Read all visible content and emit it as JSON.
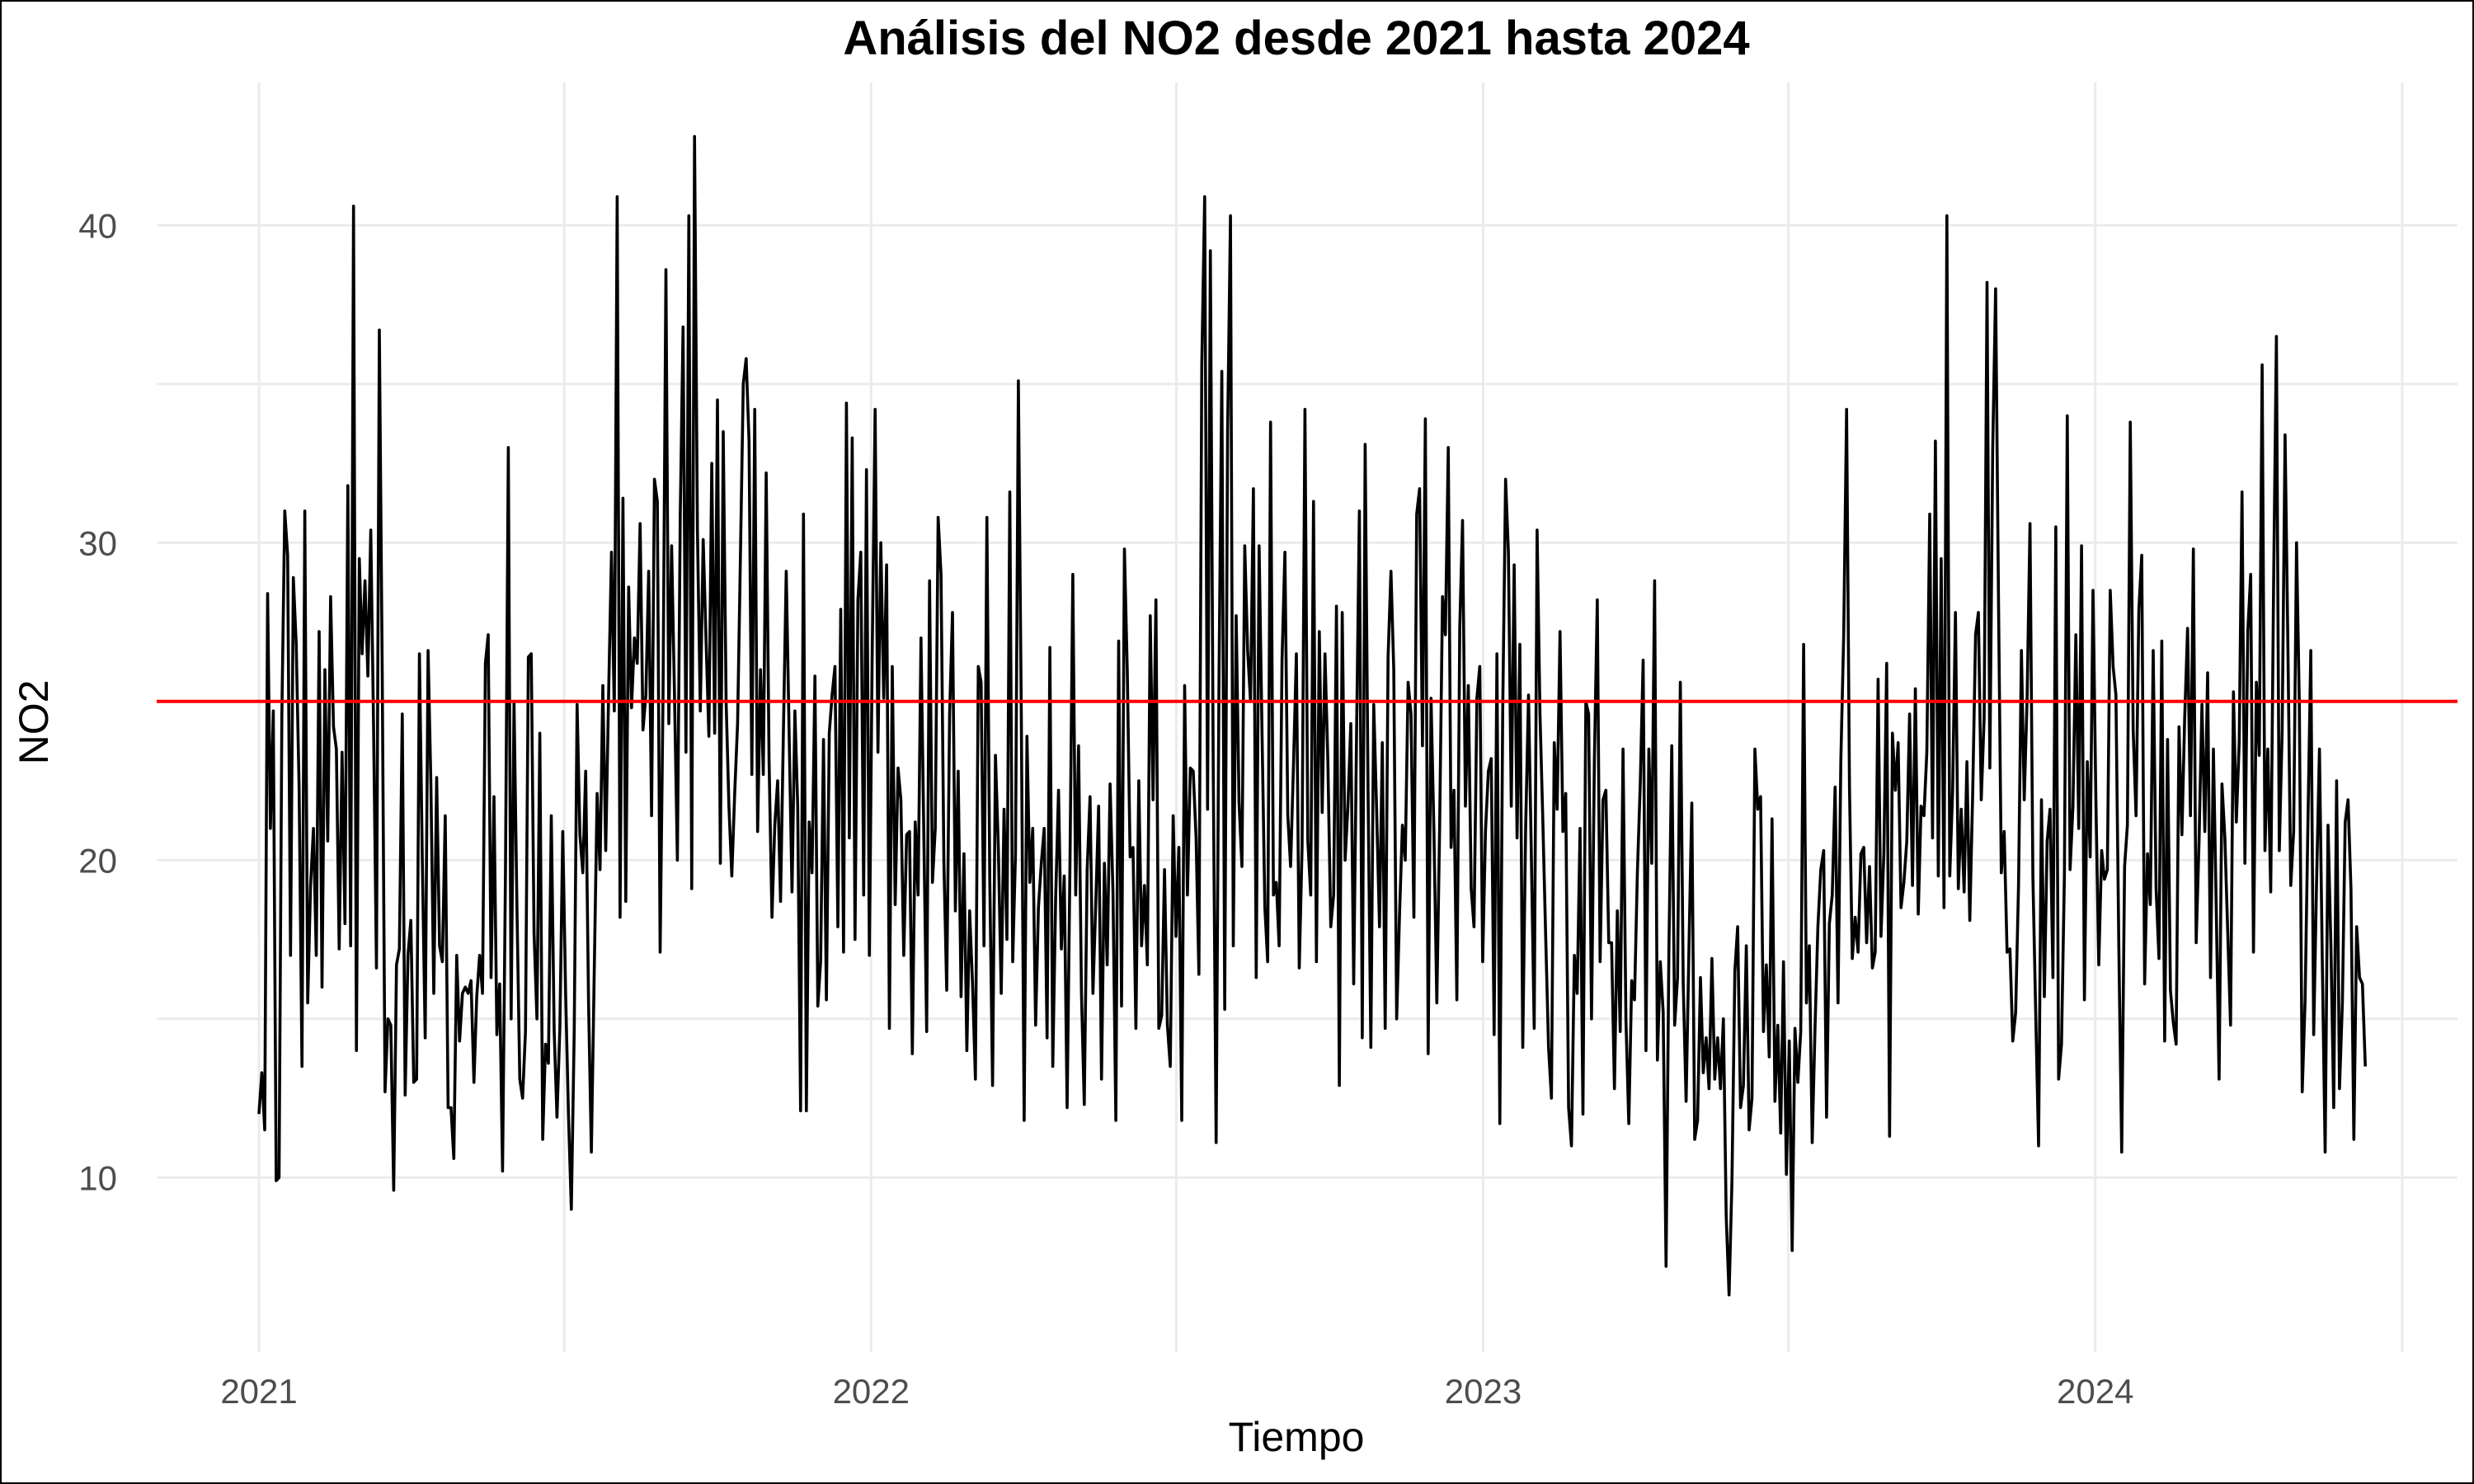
{
  "chart_data": {
    "type": "line",
    "title": "Análisis del NO2 desde 2021 hasta 2024",
    "xlabel": "Tiempo",
    "ylabel": "NO2",
    "x_ticks": [
      "2021",
      "2022",
      "2023",
      "2024"
    ],
    "y_ticks": [
      10,
      20,
      30,
      40
    ],
    "ylim": [
      4.5,
      44.5
    ],
    "xlim": [
      "2020-11-01",
      "2024-08-04"
    ],
    "grid": true,
    "series": [
      {
        "color": "#000000",
        "x_start": "2021-01-01",
        "x_end": "2024-06-10",
        "values": [
          12.0,
          13.3,
          11.5,
          28.4,
          21.0,
          24.7,
          9.9,
          10.0,
          24.6,
          31.0,
          29.6,
          17.0,
          28.9,
          26.8,
          22.3,
          13.5,
          31.0,
          15.5,
          19.2,
          21.0,
          17.0,
          27.2,
          16.0,
          26.0,
          20.6,
          28.3,
          24.2,
          23.5,
          17.2,
          23.4,
          18.0,
          31.8,
          17.3,
          40.6,
          14.0,
          29.5,
          26.5,
          28.8,
          25.8,
          30.4,
          24.2,
          16.6,
          36.7,
          25.9,
          12.7,
          15.0,
          14.8,
          9.6,
          16.7,
          17.2,
          24.6,
          12.6,
          17.0,
          18.1,
          13.0,
          13.1,
          26.5,
          20.0,
          14.4,
          26.6,
          22.4,
          15.8,
          22.6,
          17.3,
          16.8,
          21.4,
          12.2,
          12.2,
          10.6,
          17.0,
          14.3,
          15.8,
          16.0,
          15.8,
          16.2,
          13.0,
          15.7,
          17.0,
          15.8,
          26.2,
          27.1,
          16.3,
          22.0,
          14.5,
          16.1,
          10.2,
          19.5,
          33.0,
          15.0,
          25.0,
          18.6,
          13.1,
          12.5,
          14.6,
          26.4,
          26.5,
          17.7,
          15.0,
          24.0,
          11.2,
          14.2,
          13.6,
          21.4,
          14.6,
          11.9,
          14.7,
          20.9,
          15.8,
          12.0,
          9.0,
          14.6,
          24.9,
          20.8,
          19.6,
          22.8,
          15.5,
          10.8,
          16.5,
          22.1,
          19.7,
          25.5,
          20.3,
          25.2,
          29.7,
          24.7,
          40.9,
          18.2,
          31.4,
          18.7,
          28.6,
          24.8,
          27.0,
          26.2,
          30.6,
          24.1,
          25.2,
          29.1,
          21.4,
          32.0,
          31.3,
          17.1,
          25.2,
          38.6,
          24.3,
          29.9,
          25.2,
          20.0,
          30.9,
          36.8,
          23.4,
          40.3,
          19.1,
          42.8,
          30.4,
          24.7,
          30.1,
          27.0,
          23.9,
          32.5,
          24.0,
          34.5,
          19.9,
          33.5,
          25.0,
          21.7,
          19.5,
          22.1,
          24.3,
          29.5,
          35.0,
          35.8,
          33.2,
          22.7,
          34.2,
          20.9,
          26.0,
          22.7,
          32.2,
          23.1,
          18.2,
          21.1,
          22.5,
          18.7,
          24.1,
          29.1,
          24.0,
          19.0,
          24.7,
          21.7,
          12.1,
          30.9,
          12.1,
          21.2,
          19.6,
          25.8,
          15.4,
          16.8,
          23.8,
          15.6,
          24.0,
          25.2,
          26.1,
          17.9,
          27.9,
          17.1,
          34.4,
          20.7,
          33.3,
          17.5,
          28.2,
          29.7,
          18.9,
          32.3,
          17.0,
          26.6,
          34.2,
          23.4,
          30.0,
          25.1,
          29.3,
          14.7,
          26.1,
          18.6,
          22.9,
          21.9,
          17.0,
          20.8,
          20.9,
          13.9,
          21.2,
          18.9,
          27.0,
          20.9,
          14.6,
          28.8,
          19.3,
          21.0,
          30.8,
          29.0,
          19.9,
          15.9,
          24.6,
          27.8,
          18.4,
          22.8,
          15.7,
          20.2,
          14.0,
          18.4,
          16.1,
          13.1,
          26.1,
          25.6,
          17.3,
          30.8,
          19.4,
          12.9,
          23.3,
          20.4,
          15.8,
          21.6,
          17.5,
          31.6,
          16.8,
          20.2,
          35.1,
          24.7,
          11.8,
          23.9,
          19.3,
          21.0,
          14.8,
          18.5,
          19.9,
          21.0,
          14.4,
          26.7,
          13.5,
          18.8,
          22.2,
          17.2,
          19.5,
          12.2,
          20.0,
          29.0,
          18.9,
          23.6,
          15.8,
          12.3,
          19.7,
          22.0,
          15.8,
          18.6,
          21.7,
          13.1,
          19.9,
          16.7,
          22.4,
          19.0,
          11.8,
          26.9,
          15.4,
          29.8,
          25.9,
          20.1,
          20.4,
          14.7,
          22.5,
          17.3,
          19.2,
          16.7,
          27.7,
          21.9,
          28.2,
          14.7,
          15.1,
          19.7,
          14.8,
          13.5,
          21.4,
          17.6,
          20.4,
          11.8,
          25.5,
          18.9,
          22.9,
          22.8,
          20.7,
          16.4,
          35.6,
          40.9,
          21.6,
          39.2,
          22.8,
          11.1,
          25.8,
          35.4,
          15.3,
          33.5,
          40.3,
          17.3,
          27.7,
          21.8,
          19.8,
          29.9,
          26.6,
          25.0,
          31.7,
          16.3,
          29.9,
          24.1,
          18.5,
          16.8,
          33.8,
          18.9,
          19.3,
          17.3,
          26.3,
          29.7,
          21.4,
          19.8,
          23.0,
          26.5,
          16.6,
          20.4,
          34.2,
          20.6,
          18.9,
          31.3,
          16.8,
          27.2,
          21.5,
          26.5,
          23.1,
          17.9,
          18.9,
          28.0,
          12.9,
          27.8,
          20.0,
          21.7,
          24.3,
          16.1,
          24.0,
          31.0,
          14.4,
          33.1,
          22.2,
          14.1,
          24.9,
          21.6,
          17.9,
          23.7,
          14.7,
          26.4,
          29.1,
          26.0,
          15.0,
          18.3,
          21.1,
          20.0,
          25.6,
          24.6,
          18.2,
          30.9,
          31.7,
          23.6,
          33.9,
          13.9,
          25.1,
          20.9,
          15.5,
          21.0,
          28.3,
          27.1,
          33.0,
          20.4,
          22.2,
          15.6,
          27.3,
          30.7,
          21.7,
          25.5,
          19.1,
          17.9,
          25.1,
          26.1,
          16.8,
          20.9,
          22.8,
          23.2,
          14.5,
          26.5,
          11.7,
          24.7,
          32.0,
          29.7,
          21.7,
          29.3,
          20.7,
          26.8,
          14.1,
          21.0,
          25.2,
          20.2,
          14.7,
          30.4,
          24.6,
          21.3,
          17.6,
          14.1,
          12.5,
          23.7,
          21.6,
          27.2,
          20.9,
          22.1,
          12.2,
          11.0,
          17.0,
          15.8,
          21.0,
          12.0,
          25.0,
          24.6,
          15.0,
          23.2,
          28.2,
          16.8,
          21.9,
          22.2,
          17.4,
          17.4,
          12.8,
          18.4,
          14.6,
          23.5,
          15.0,
          11.7,
          16.2,
          15.6,
          19.6,
          22.4,
          26.3,
          14.0,
          23.5,
          19.9,
          28.8,
          13.7,
          16.8,
          15.2,
          7.2,
          17.1,
          23.6,
          14.8,
          16.3,
          25.6,
          16.1,
          12.4,
          17.3,
          21.8,
          11.2,
          11.8,
          16.3,
          13.3,
          14.4,
          12.8,
          16.9,
          13.1,
          14.4,
          12.8,
          15.0,
          8.8,
          6.3,
          9.9,
          16.5,
          17.9,
          12.2,
          12.9,
          17.3,
          11.5,
          12.5,
          23.5,
          21.6,
          22.0,
          14.6,
          16.7,
          13.8,
          21.3,
          12.4,
          14.8,
          11.4,
          16.8,
          10.1,
          14.3,
          7.7,
          14.7,
          13.0,
          14.6,
          26.8,
          15.5,
          17.3,
          11.1,
          14.8,
          17.9,
          19.7,
          20.3,
          11.9,
          18.0,
          18.9,
          22.3,
          15.5,
          23.1,
          27.1,
          34.2,
          22.3,
          16.9,
          18.2,
          17.1,
          20.2,
          20.4,
          17.4,
          19.8,
          16.6,
          17.1,
          25.7,
          17.6,
          20.2,
          26.2,
          11.3,
          24.0,
          22.2,
          23.7,
          18.5,
          19.3,
          20.6,
          24.6,
          19.2,
          25.4,
          18.3,
          21.7,
          21.4,
          23.4,
          30.9,
          20.7,
          33.2,
          19.5,
          29.5,
          18.5,
          40.3,
          19.5,
          22.2,
          27.8,
          19.1,
          21.6,
          19.0,
          23.1,
          18.1,
          22.1,
          27.1,
          27.8,
          21.9,
          24.5,
          38.2,
          22.9,
          33.0,
          38.0,
          28.2,
          19.6,
          20.9,
          17.1,
          17.2,
          14.3,
          15.2,
          19.2,
          26.6,
          21.9,
          25.1,
          30.6,
          19.5,
          15.2,
          11.0,
          21.9,
          15.7,
          20.6,
          21.6,
          16.3,
          30.5,
          13.1,
          14.2,
          19.5,
          34.0,
          19.7,
          21.7,
          27.1,
          21.0,
          29.9,
          15.6,
          23.1,
          20.1,
          28.5,
          21.9,
          16.7,
          20.3,
          19.4,
          19.7,
          28.5,
          26.1,
          25.2,
          17.3,
          10.8,
          19.8,
          21.1,
          33.8,
          24.1,
          21.4,
          27.9,
          29.6,
          16.1,
          20.2,
          18.6,
          26.6,
          19.1,
          16.9,
          26.9,
          14.3,
          23.8,
          15.9,
          14.9,
          14.2,
          24.2,
          20.8,
          24.5,
          27.3,
          21.4,
          29.8,
          17.4,
          20.6,
          24.9,
          20.9,
          25.9,
          16.3,
          23.5,
          18.4,
          13.1,
          22.4,
          20.7,
          17.7,
          14.8,
          25.3,
          21.2,
          23.7,
          31.6,
          19.9,
          27.2,
          29.0,
          17.1,
          25.6,
          23.3,
          35.6,
          20.3,
          23.5,
          19.0,
          28.7,
          36.5,
          20.3,
          24.1,
          33.4,
          26.8,
          19.2,
          20.9,
          30.0,
          24.9,
          12.7,
          15.6,
          21.3,
          26.6,
          14.5,
          19.3,
          23.5,
          16.9,
          10.8,
          21.1,
          17.3,
          12.2,
          22.5,
          12.8,
          15.5,
          21.2,
          21.9,
          19.1,
          11.2,
          17.9,
          16.3,
          16.1,
          13.5
        ]
      }
    ],
    "hlines": [
      {
        "y": 25,
        "color": "#ff0000"
      }
    ]
  }
}
